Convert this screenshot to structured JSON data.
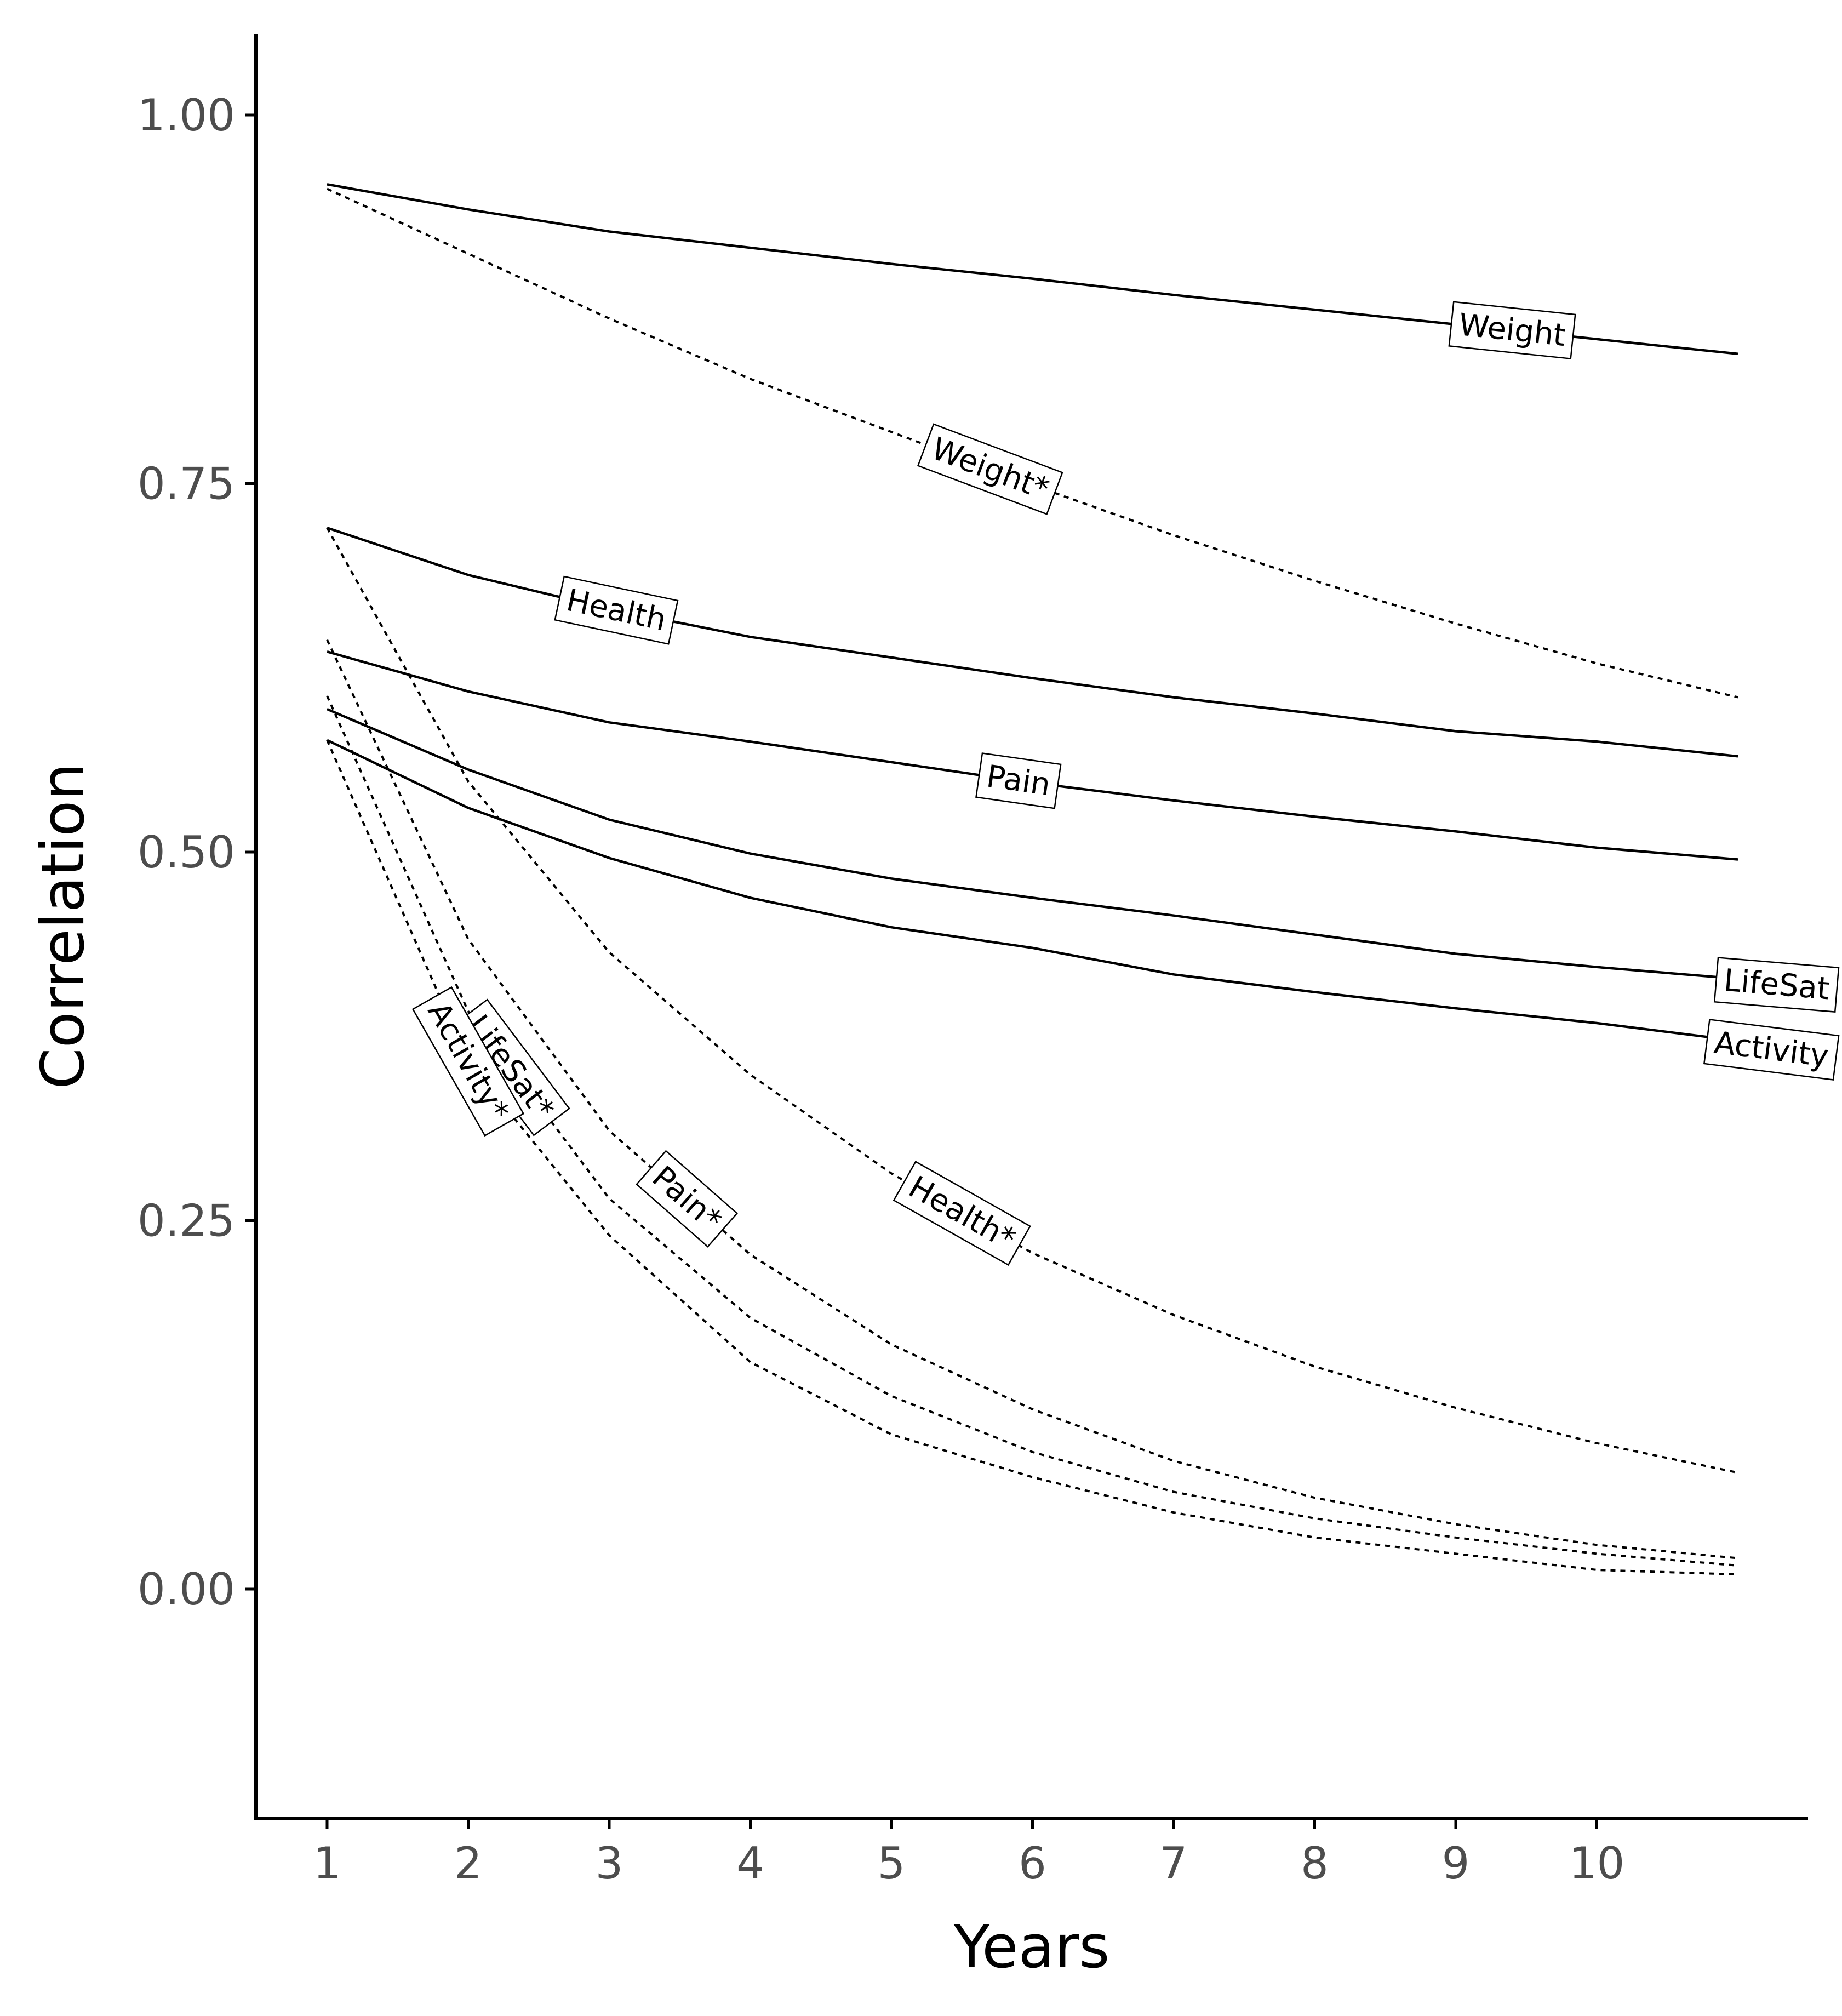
{
  "chart_data": {
    "type": "line",
    "title": "",
    "xlabel": "Years",
    "ylabel": "Correlation",
    "xlim": [
      0.5,
      11.5
    ],
    "ylim": [
      -0.155,
      1.055
    ],
    "x_ticks": [
      1,
      2,
      3,
      4,
      5,
      6,
      7,
      8,
      9,
      10
    ],
    "x_tick_labels": [
      "1",
      "2",
      "3",
      "4",
      "5",
      "6",
      "7",
      "8",
      "9",
      "10"
    ],
    "y_ticks": [
      0,
      0.25,
      0.5,
      0.75,
      1.0
    ],
    "y_tick_labels": [
      "0.00",
      "0.25",
      "0.50",
      "0.75",
      "1.00"
    ],
    "grid": false,
    "legend": "none",
    "x": [
      1,
      2,
      3,
      4,
      5,
      6,
      7,
      8,
      9,
      10,
      11
    ],
    "series": [
      {
        "name": "Weight",
        "style": "solid",
        "values": [
          0.953,
          0.936,
          0.921,
          0.91,
          0.899,
          0.889,
          0.878,
          0.868,
          0.858,
          0.848,
          0.838
        ],
        "label_at": 9.4
      },
      {
        "name": "Weight*",
        "style": "dotted",
        "values": [
          0.95,
          0.906,
          0.862,
          0.821,
          0.785,
          0.749,
          0.715,
          0.684,
          0.655,
          0.628,
          0.605
        ],
        "label_at": 5.7
      },
      {
        "name": "Health",
        "style": "solid",
        "values": [
          0.72,
          0.688,
          0.665,
          0.646,
          0.632,
          0.618,
          0.605,
          0.594,
          0.582,
          0.575,
          0.565
        ],
        "label_at": 3.05
      },
      {
        "name": "Pain",
        "style": "solid",
        "values": [
          0.636,
          0.609,
          0.588,
          0.575,
          0.561,
          0.547,
          0.535,
          0.524,
          0.514,
          0.503,
          0.495
        ],
        "label_at": 5.9
      },
      {
        "name": "LifeSat",
        "style": "solid",
        "values": [
          0.597,
          0.556,
          0.522,
          0.499,
          0.482,
          0.469,
          0.457,
          0.444,
          0.431,
          0.422,
          0.414
        ],
        "label_at": 11.5
      },
      {
        "name": "Activity",
        "style": "solid",
        "values": [
          0.576,
          0.53,
          0.496,
          0.469,
          0.449,
          0.435,
          0.417,
          0.405,
          0.394,
          0.384,
          0.372
        ],
        "label_at": 11.5
      },
      {
        "name": "Health*",
        "style": "dotted",
        "values": [
          0.72,
          0.548,
          0.432,
          0.349,
          0.282,
          0.228,
          0.186,
          0.151,
          0.123,
          0.099,
          0.079
        ],
        "label_at": 5.5
      },
      {
        "name": "Pain*",
        "style": "dotted",
        "values": [
          0.644,
          0.441,
          0.311,
          0.227,
          0.166,
          0.122,
          0.087,
          0.062,
          0.044,
          0.03,
          0.021
        ],
        "label_at": 3.55
      },
      {
        "name": "LifeSat*",
        "style": "dotted",
        "values": [
          0.606,
          0.392,
          0.265,
          0.184,
          0.131,
          0.093,
          0.066,
          0.048,
          0.035,
          0.024,
          0.016
        ],
        "label_at": 2.3
      },
      {
        "name": "Activity*",
        "style": "dotted",
        "values": [
          0.576,
          0.358,
          0.24,
          0.154,
          0.105,
          0.076,
          0.052,
          0.035,
          0.024,
          0.013,
          0.01
        ],
        "label_at": 2.0
      }
    ]
  }
}
